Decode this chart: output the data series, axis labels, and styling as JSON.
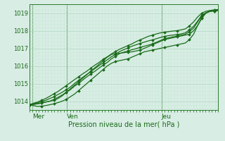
{
  "xlabel": "Pression niveau de la mer( hPa )",
  "bg_color": "#d8ede4",
  "line_color": "#1a6b1a",
  "grid_minor_color": "#c8e8d8",
  "grid_major_color": "#b0d8c0",
  "day_line_color": "#2d7a2d",
  "ylim": [
    1013.5,
    1019.5
  ],
  "xlim": [
    0,
    120
  ],
  "yticks": [
    1014,
    1015,
    1016,
    1017,
    1018,
    1019
  ],
  "xtick_labels": [
    "Mer",
    "Ven",
    "Jeu"
  ],
  "xtick_positions": [
    2,
    24,
    84
  ],
  "lines": [
    [
      1013.8,
      1013.82,
      1013.85,
      1013.9,
      1013.95,
      1014.0,
      1014.05,
      1014.15,
      1014.3,
      1014.5,
      1014.7,
      1014.9,
      1015.1,
      1015.3,
      1015.5,
      1015.7,
      1015.9,
      1016.1,
      1016.3,
      1016.5,
      1016.65,
      1016.7,
      1016.72,
      1016.75,
      1016.78,
      1016.8,
      1016.85,
      1016.9,
      1017.0,
      1017.1,
      1017.2,
      1017.3,
      1017.4,
      1017.5,
      1017.55,
      1017.6,
      1017.65,
      1017.7,
      1017.75,
      1017.8,
      1018.0,
      1018.3,
      1018.7,
      1019.0,
      1019.1,
      1019.15,
      1019.2
    ],
    [
      1013.8,
      1013.75,
      1013.7,
      1013.72,
      1013.75,
      1013.8,
      1013.85,
      1013.92,
      1014.0,
      1014.1,
      1014.25,
      1014.4,
      1014.6,
      1014.8,
      1015.0,
      1015.2,
      1015.4,
      1015.6,
      1015.8,
      1016.0,
      1016.15,
      1016.25,
      1016.3,
      1016.35,
      1016.4,
      1016.5,
      1016.6,
      1016.7,
      1016.8,
      1016.85,
      1016.9,
      1016.95,
      1017.0,
      1017.05,
      1017.1,
      1017.15,
      1017.2,
      1017.25,
      1017.3,
      1017.5,
      1017.8,
      1018.3,
      1018.75,
      1019.0,
      1019.1,
      1019.15,
      1019.2
    ],
    [
      1013.8,
      1013.82,
      1013.85,
      1013.9,
      1013.95,
      1014.0,
      1014.1,
      1014.22,
      1014.35,
      1014.5,
      1014.65,
      1014.85,
      1015.0,
      1015.2,
      1015.38,
      1015.55,
      1015.7,
      1015.88,
      1016.05,
      1016.2,
      1016.4,
      1016.55,
      1016.7,
      1016.78,
      1016.85,
      1016.92,
      1016.98,
      1017.05,
      1017.12,
      1017.18,
      1017.25,
      1017.35,
      1017.45,
      1017.55,
      1017.6,
      1017.65,
      1017.7,
      1017.75,
      1017.8,
      1017.95,
      1018.15,
      1018.5,
      1018.85,
      1019.0,
      1019.1,
      1019.12,
      1019.15
    ],
    [
      1013.8,
      1013.85,
      1013.9,
      1013.98,
      1014.05,
      1014.15,
      1014.25,
      1014.38,
      1014.5,
      1014.65,
      1014.8,
      1015.0,
      1015.18,
      1015.35,
      1015.52,
      1015.68,
      1015.85,
      1016.02,
      1016.18,
      1016.35,
      1016.52,
      1016.65,
      1016.82,
      1016.92,
      1017.02,
      1017.12,
      1017.2,
      1017.28,
      1017.35,
      1017.42,
      1017.48,
      1017.55,
      1017.62,
      1017.68,
      1017.72,
      1017.75,
      1017.78,
      1017.82,
      1017.88,
      1018.05,
      1018.25,
      1018.55,
      1018.88,
      1019.02,
      1019.1,
      1019.12,
      1019.15
    ],
    [
      1013.8,
      1013.88,
      1013.95,
      1014.05,
      1014.15,
      1014.28,
      1014.42,
      1014.55,
      1014.72,
      1014.88,
      1015.05,
      1015.22,
      1015.38,
      1015.55,
      1015.7,
      1015.88,
      1016.05,
      1016.2,
      1016.38,
      1016.52,
      1016.68,
      1016.82,
      1016.95,
      1017.05,
      1017.15,
      1017.25,
      1017.38,
      1017.48,
      1017.58,
      1017.68,
      1017.75,
      1017.82,
      1017.88,
      1017.92,
      1017.95,
      1017.98,
      1018.0,
      1018.05,
      1018.1,
      1018.28,
      1018.5,
      1018.78,
      1019.0,
      1019.1,
      1019.15,
      1019.18,
      1019.2
    ]
  ],
  "marker_every": 3,
  "marker_size": 2.0,
  "line_width": 0.9
}
